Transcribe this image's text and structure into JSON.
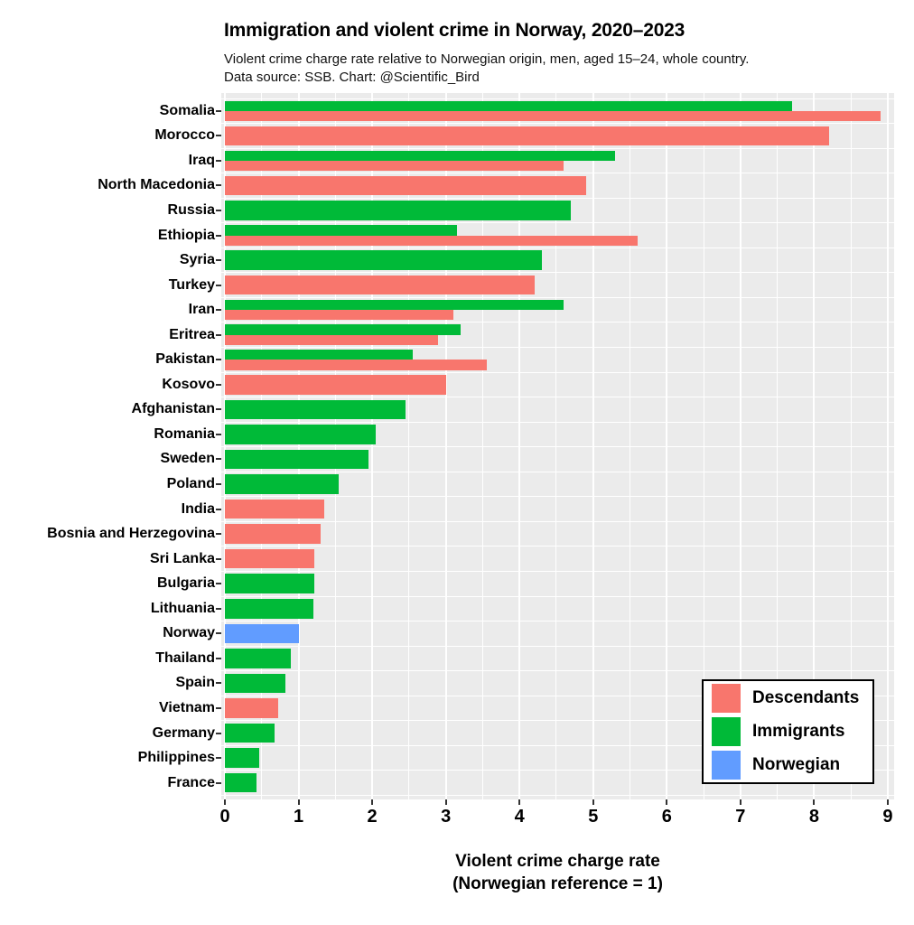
{
  "chart_data": {
    "type": "bar",
    "orientation": "horizontal",
    "title": "Immigration and violent crime in Norway, 2020–2023",
    "subtitle_line1": "Violent crime charge rate relative to Norwegian origin, men, aged 15–24, whole country.",
    "subtitle_line2": "Data source: SSB.  Chart: @Scientific_Bird",
    "xlabel_line1": "Violent crime charge rate",
    "xlabel_line2": "(Norwegian reference = 1)",
    "xlim": [
      0,
      9
    ],
    "xticks": [
      0,
      1,
      2,
      3,
      4,
      5,
      6,
      7,
      8,
      9
    ],
    "minor_grid_step": 0.5,
    "grid": true,
    "panel_background": "#EBEBEB",
    "gridline_color": "#FFFFFF",
    "legend_position": "inside-bottom-right",
    "series_colors": {
      "Descendants": "#F8766D",
      "Immigrants": "#00BA38",
      "Norwegian": "#619CFF"
    },
    "legend": [
      "Descendants",
      "Immigrants",
      "Norwegian"
    ],
    "rows": [
      {
        "country": "Somalia",
        "bars": [
          {
            "group": "Immigrants",
            "value": 7.7
          },
          {
            "group": "Descendants",
            "value": 8.9
          }
        ]
      },
      {
        "country": "Morocco",
        "bars": [
          {
            "group": "Descendants",
            "value": 8.2
          }
        ]
      },
      {
        "country": "Iraq",
        "bars": [
          {
            "group": "Immigrants",
            "value": 5.3
          },
          {
            "group": "Descendants",
            "value": 4.6
          }
        ]
      },
      {
        "country": "North Macedonia",
        "bars": [
          {
            "group": "Descendants",
            "value": 4.9
          }
        ]
      },
      {
        "country": "Russia",
        "bars": [
          {
            "group": "Immigrants",
            "value": 4.7
          }
        ]
      },
      {
        "country": "Ethiopia",
        "bars": [
          {
            "group": "Immigrants",
            "value": 3.15
          },
          {
            "group": "Descendants",
            "value": 5.6
          }
        ]
      },
      {
        "country": "Syria",
        "bars": [
          {
            "group": "Immigrants",
            "value": 4.3
          }
        ]
      },
      {
        "country": "Turkey",
        "bars": [
          {
            "group": "Descendants",
            "value": 4.2
          }
        ]
      },
      {
        "country": "Iran",
        "bars": [
          {
            "group": "Immigrants",
            "value": 4.6
          },
          {
            "group": "Descendants",
            "value": 3.1
          }
        ]
      },
      {
        "country": "Eritrea",
        "bars": [
          {
            "group": "Immigrants",
            "value": 3.2
          },
          {
            "group": "Descendants",
            "value": 2.9
          }
        ]
      },
      {
        "country": "Pakistan",
        "bars": [
          {
            "group": "Immigrants",
            "value": 2.55
          },
          {
            "group": "Descendants",
            "value": 3.55
          }
        ]
      },
      {
        "country": "Kosovo",
        "bars": [
          {
            "group": "Descendants",
            "value": 3.0
          }
        ]
      },
      {
        "country": "Afghanistan",
        "bars": [
          {
            "group": "Immigrants",
            "value": 2.45
          }
        ]
      },
      {
        "country": "Romania",
        "bars": [
          {
            "group": "Immigrants",
            "value": 2.05
          }
        ]
      },
      {
        "country": "Sweden",
        "bars": [
          {
            "group": "Immigrants",
            "value": 1.95
          }
        ]
      },
      {
        "country": "Poland",
        "bars": [
          {
            "group": "Immigrants",
            "value": 1.55
          }
        ]
      },
      {
        "country": "India",
        "bars": [
          {
            "group": "Descendants",
            "value": 1.35
          }
        ]
      },
      {
        "country": "Bosnia and Herzegovina",
        "bars": [
          {
            "group": "Descendants",
            "value": 1.3
          }
        ]
      },
      {
        "country": "Sri Lanka",
        "bars": [
          {
            "group": "Descendants",
            "value": 1.22
          }
        ]
      },
      {
        "country": "Bulgaria",
        "bars": [
          {
            "group": "Immigrants",
            "value": 1.22
          }
        ]
      },
      {
        "country": "Lithuania",
        "bars": [
          {
            "group": "Immigrants",
            "value": 1.2
          }
        ]
      },
      {
        "country": "Norway",
        "bars": [
          {
            "group": "Norwegian",
            "value": 1.0
          }
        ]
      },
      {
        "country": "Thailand",
        "bars": [
          {
            "group": "Immigrants",
            "value": 0.9
          }
        ]
      },
      {
        "country": "Spain",
        "bars": [
          {
            "group": "Immigrants",
            "value": 0.82
          }
        ]
      },
      {
        "country": "Vietnam",
        "bars": [
          {
            "group": "Descendants",
            "value": 0.72
          }
        ]
      },
      {
        "country": "Germany",
        "bars": [
          {
            "group": "Immigrants",
            "value": 0.67
          }
        ]
      },
      {
        "country": "Philippines",
        "bars": [
          {
            "group": "Immigrants",
            "value": 0.47
          }
        ]
      },
      {
        "country": "France",
        "bars": [
          {
            "group": "Immigrants",
            "value": 0.43
          }
        ]
      }
    ]
  }
}
